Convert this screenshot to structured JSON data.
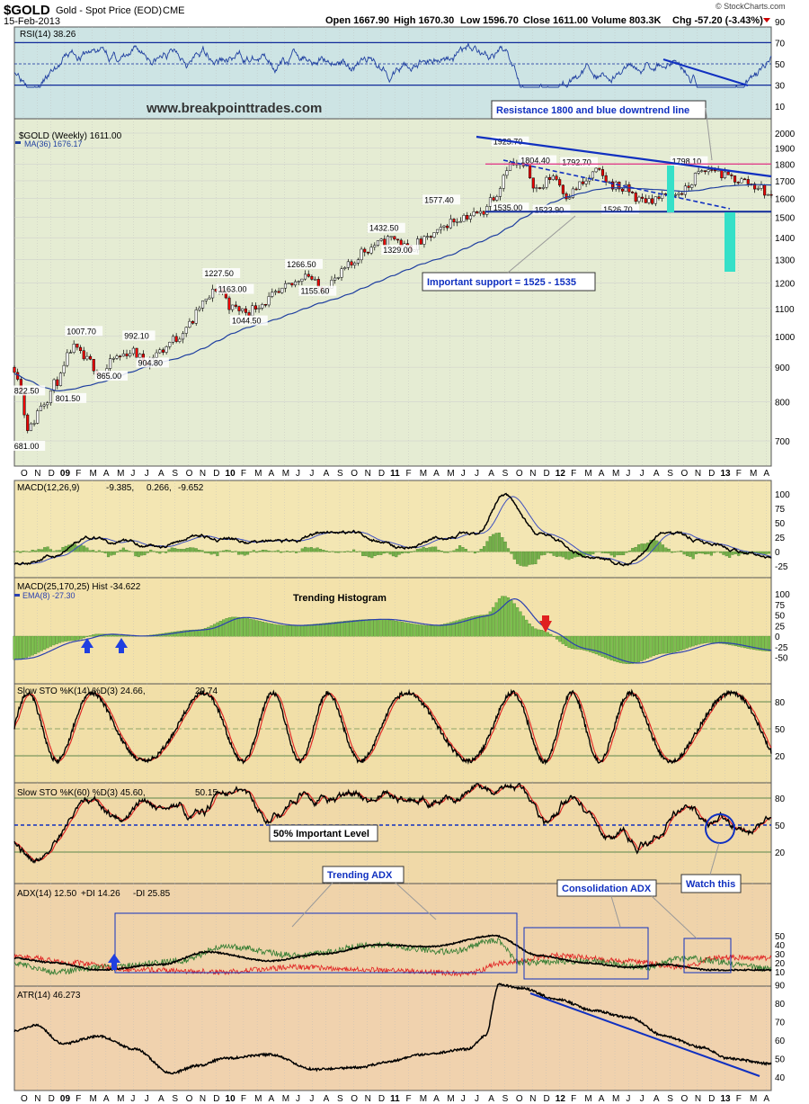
{
  "header": {
    "symbol": "$GOLD",
    "name": "Gold - Spot Price (EOD)",
    "exchange": "CME",
    "date": "15-Feb-2013",
    "open": "Open 1667.90",
    "high": "High 1670.30",
    "low": "Low 1596.70",
    "close": "Close 1611.00",
    "volume": "Volume 803.3K",
    "chg": "Chg -57.20 (-3.43%)",
    "brand": "© StockCharts.com",
    "website": "www.breakpointtrades.com"
  },
  "months": [
    "O",
    "N",
    "D",
    "09",
    "F",
    "M",
    "A",
    "M",
    "J",
    "J",
    "A",
    "S",
    "O",
    "N",
    "D",
    "10",
    "F",
    "M",
    "A",
    "M",
    "J",
    "J",
    "A",
    "S",
    "O",
    "N",
    "D",
    "11",
    "F",
    "M",
    "A",
    "M",
    "J",
    "J",
    "A",
    "S",
    "O",
    "N",
    "D",
    "12",
    "F",
    "M",
    "A",
    "M",
    "J",
    "J",
    "A",
    "S",
    "O",
    "N",
    "D",
    "13",
    "F",
    "M",
    "A"
  ],
  "panels": {
    "rsi": {
      "label": "RSI(14) 38.26",
      "ticks": [
        "90",
        "70",
        "50",
        "30",
        "10"
      ]
    },
    "price": {
      "label": "$GOLD (Weekly) 1611.00",
      "ma": "MA(36) 1676.17",
      "ticks": [
        "2000",
        "1900",
        "1800",
        "1700",
        "1600",
        "1500",
        "1400",
        "1300",
        "1200",
        "1100",
        "1000",
        "900",
        "800",
        "700"
      ]
    },
    "macd1": {
      "label_a": "MACD(12,26,9)",
      "val_a": "-9.385,",
      "val_b": "0.266,",
      "val_c": "-9.652",
      "ticks": [
        "100",
        "75",
        "50",
        "25",
        "0",
        "-25"
      ]
    },
    "macd2": {
      "label": "MACD(25,170,25) Hist -34.622",
      "ema": "EMA(8) -27.30",
      "ticks": [
        "100",
        "75",
        "50",
        "25",
        "0",
        "-25",
        "-50"
      ]
    },
    "sto1": {
      "label_a": "Slow STO %K(14) %D(3) 24.66,",
      "label_b": "29.74",
      "ticks": [
        "80",
        "50",
        "20"
      ]
    },
    "sto2": {
      "label_a": "Slow STO %K(60) %D(3) 45.60,",
      "label_b": "50.15",
      "ticks": [
        "80",
        "50",
        "20"
      ]
    },
    "adx": {
      "label_a": "ADX(14) 12.50",
      "label_b": "+DI 14.26",
      "label_c": "-DI 25.85",
      "ticks": [
        "50",
        "40",
        "30",
        "20",
        "10"
      ]
    },
    "atr": {
      "label": "ATR(14) 46.273",
      "ticks": [
        "90",
        "80",
        "70",
        "60",
        "50",
        "40"
      ]
    }
  },
  "annotations": {
    "resistance": "Resistance 1800 and blue downtrend line",
    "support": "Important support = 1525 - 1535",
    "trending_hist": "Trending Histogram",
    "fifty": "50% Important Level",
    "watch": "Watch this",
    "trending_adx": "Trending ADX",
    "consol_adx": "Consolidation ADX"
  },
  "chart_data": {
    "type": "line",
    "title": "$GOLD Gold - Spot Price (EOD) CME",
    "xlabel": "",
    "ylabel": "",
    "ylim": [
      650,
      2000
    ],
    "price_labels": [
      {
        "x": "Oct 08",
        "y": 822.5,
        "label": "822.50"
      },
      {
        "x": "Oct 08",
        "y": 681.0,
        "label": "681.00"
      },
      {
        "x": "Jan 09",
        "y": 801.5,
        "label": "801.50"
      },
      {
        "x": "Feb 09",
        "y": 1007.7,
        "label": "1007.70"
      },
      {
        "x": "Apr 09",
        "y": 865.0,
        "label": "865.00"
      },
      {
        "x": "Jun 09",
        "y": 992.1,
        "label": "992.10"
      },
      {
        "x": "Jul 09",
        "y": 904.8,
        "label": "904.80"
      },
      {
        "x": "Dec 09",
        "y": 1227.5,
        "label": "1227.50"
      },
      {
        "x": "Jan 10",
        "y": 1163.0,
        "label": "1163.00"
      },
      {
        "x": "Feb 10",
        "y": 1044.5,
        "label": "1044.50"
      },
      {
        "x": "Jun 10",
        "y": 1266.5,
        "label": "1266.50"
      },
      {
        "x": "Jul 10",
        "y": 1155.6,
        "label": "1155.60"
      },
      {
        "x": "Dec 10",
        "y": 1432.5,
        "label": "1432.50"
      },
      {
        "x": "Jan 11",
        "y": 1329.0,
        "label": "1329.00"
      },
      {
        "x": "Apr 11",
        "y": 1577.4,
        "label": "1577.40"
      },
      {
        "x": "Sep 11",
        "y": 1923.7,
        "label": "1923.70"
      },
      {
        "x": "Sep 11",
        "y": 1535.0,
        "label": "1535.00"
      },
      {
        "x": "Nov 11",
        "y": 1804.4,
        "label": "1804.40"
      },
      {
        "x": "Dec 11",
        "y": 1523.9,
        "label": "1523.90"
      },
      {
        "x": "Feb 12",
        "y": 1792.7,
        "label": "1792.70"
      },
      {
        "x": "May 12",
        "y": 1526.7,
        "label": "1526.70"
      },
      {
        "x": "Oct 12",
        "y": 1798.1,
        "label": "1798.10"
      }
    ],
    "series": [
      {
        "name": "$GOLD (Weekly)",
        "x": [
          "Oct 08",
          "Nov 08",
          "Dec 08",
          "Jan 09",
          "Feb 09",
          "Mar 09",
          "Apr 09",
          "May 09",
          "Jun 09",
          "Jul 09",
          "Aug 09",
          "Sep 09",
          "Oct 09",
          "Nov 09",
          "Dec 09",
          "Jan 10",
          "Feb 10",
          "Mar 10",
          "Apr 10",
          "May 10",
          "Jun 10",
          "Jul 10",
          "Aug 10",
          "Sep 10",
          "Oct 10",
          "Nov 10",
          "Dec 10",
          "Jan 11",
          "Feb 11",
          "Mar 11",
          "Apr 11",
          "May 11",
          "Jun 11",
          "Jul 11",
          "Aug 11",
          "Sep 11",
          "Oct 11",
          "Nov 11",
          "Dec 11",
          "Jan 12",
          "Feb 12",
          "Mar 12",
          "Apr 12",
          "May 12",
          "Jun 12",
          "Jul 12",
          "Aug 12",
          "Sep 12",
          "Oct 12",
          "Nov 12",
          "Dec 12",
          "Jan 13",
          "Feb 13"
        ],
        "values": [
          900,
          730,
          800,
          860,
          960,
          920,
          880,
          930,
          950,
          920,
          950,
          990,
          1040,
          1120,
          1180,
          1100,
          1090,
          1120,
          1150,
          1190,
          1240,
          1180,
          1210,
          1270,
          1340,
          1370,
          1400,
          1350,
          1380,
          1420,
          1480,
          1510,
          1520,
          1620,
          1800,
          1780,
          1650,
          1730,
          1620,
          1680,
          1750,
          1680,
          1650,
          1590,
          1600,
          1610,
          1640,
          1740,
          1770,
          1720,
          1700,
          1670,
          1611
        ]
      },
      {
        "name": "MA(36)",
        "x": [
          "Oct 08",
          "Nov 08",
          "Dec 08",
          "Jan 09",
          "Feb 09",
          "Mar 09",
          "Apr 09",
          "May 09",
          "Jun 09",
          "Jul 09",
          "Aug 09",
          "Sep 09",
          "Oct 09",
          "Nov 09",
          "Dec 09",
          "Jan 10",
          "Feb 10",
          "Mar 10",
          "Apr 10",
          "May 10",
          "Jun 10",
          "Jul 10",
          "Aug 10",
          "Sep 10",
          "Oct 10",
          "Nov 10",
          "Dec 10",
          "Jan 11",
          "Feb 11",
          "Mar 11",
          "Apr 11",
          "May 11",
          "Jun 11",
          "Jul 11",
          "Aug 11",
          "Sep 11",
          "Oct 11",
          "Nov 11",
          "Dec 11",
          "Jan 12",
          "Feb 12",
          "Mar 12",
          "Apr 12",
          "May 12",
          "Jun 12",
          "Jul 12",
          "Aug 12",
          "Sep 12",
          "Oct 12",
          "Nov 12",
          "Dec 12",
          "Jan 13",
          "Feb 13"
        ],
        "values": [
          880,
          860,
          840,
          830,
          835,
          845,
          855,
          870,
          885,
          900,
          915,
          925,
          940,
          960,
          985,
          1010,
          1030,
          1045,
          1060,
          1080,
          1100,
          1120,
          1135,
          1155,
          1180,
          1205,
          1230,
          1255,
          1280,
          1300,
          1320,
          1350,
          1380,
          1410,
          1450,
          1500,
          1540,
          1580,
          1610,
          1630,
          1650,
          1660,
          1660,
          1655,
          1650,
          1645,
          1640,
          1645,
          1660,
          1670,
          1675,
          1678,
          1676
        ]
      }
    ],
    "lines": [
      {
        "name": "Resistance",
        "y": 1800
      },
      {
        "name": "Support",
        "y": 1530
      }
    ]
  }
}
